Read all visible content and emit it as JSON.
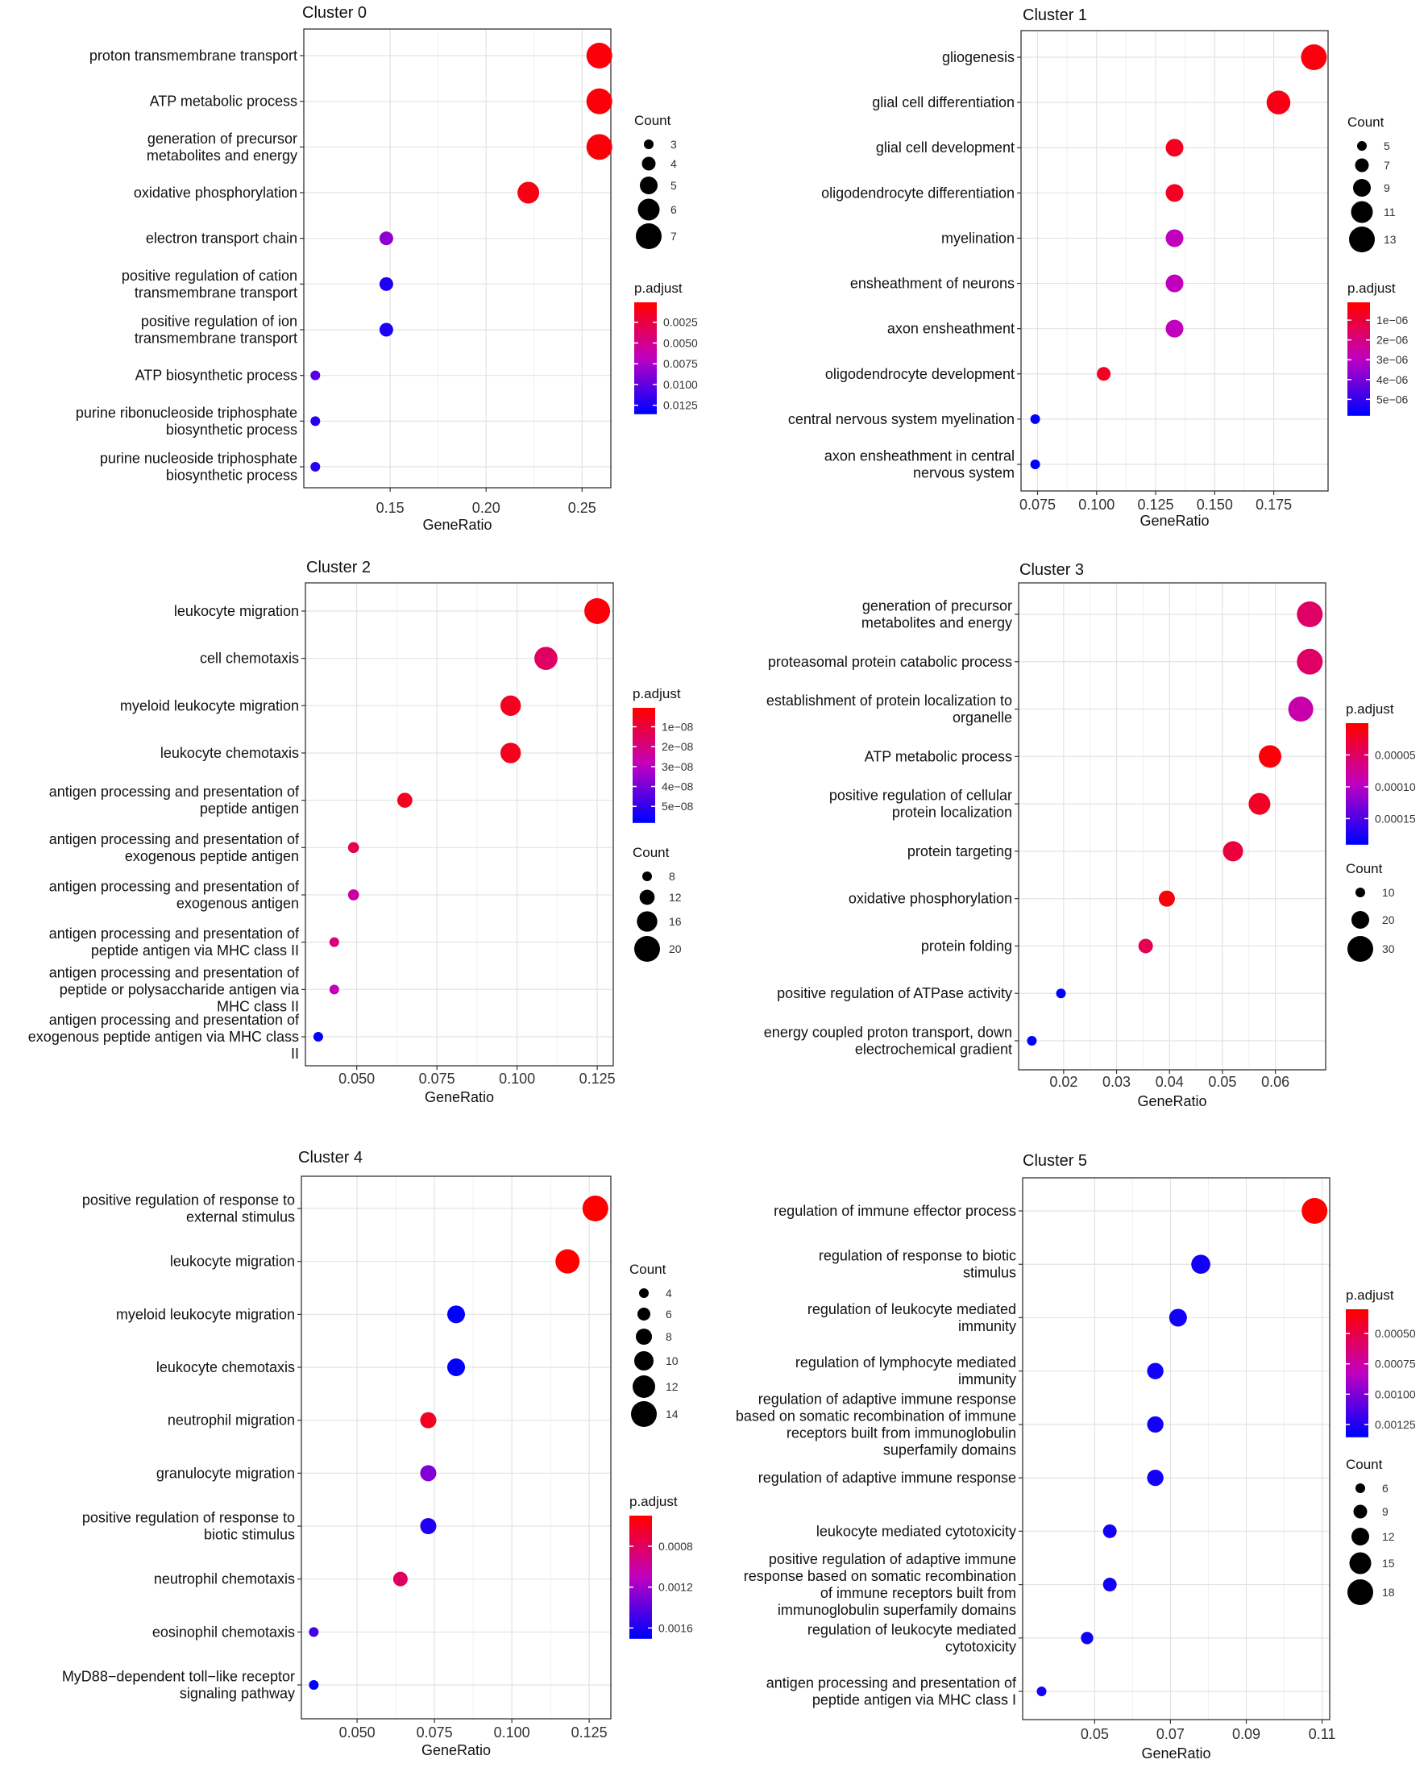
{
  "chart_data": [
    {
      "type": "scatter",
      "title": "Cluster 0",
      "xlabel": "GeneRatio",
      "xlim": [
        0.105,
        0.265
      ],
      "xticks": [
        0.15,
        0.2,
        0.25
      ],
      "xtick_labels": [
        "0.15",
        "0.20",
        "0.25"
      ],
      "categories": [
        [
          "proton transmembrane transport"
        ],
        [
          "ATP metabolic process"
        ],
        [
          "generation of precursor",
          "metabolites and energy"
        ],
        [
          "oxidative phosphorylation"
        ],
        [
          "electron transport chain"
        ],
        [
          "positive regulation of cation",
          "transmembrane transport"
        ],
        [
          "positive regulation of ion",
          "transmembrane transport"
        ],
        [
          "ATP biosynthetic process"
        ],
        [
          "purine ribonucleoside triphosphate",
          "biosynthetic process"
        ],
        [
          "purine nucleoside triphosphate",
          "biosynthetic process"
        ]
      ],
      "x": [
        0.259,
        0.259,
        0.259,
        0.222,
        0.148,
        0.148,
        0.148,
        0.111,
        0.111,
        0.111
      ],
      "count": [
        7,
        7,
        7,
        6,
        4,
        4,
        4,
        3,
        3,
        3
      ],
      "p_adjust": [
        0.0004,
        0.0004,
        0.0004,
        0.0008,
        0.0085,
        0.0125,
        0.0125,
        0.0105,
        0.0122,
        0.0122
      ],
      "count_legend": {
        "title": "Count",
        "values": [
          3,
          4,
          5,
          6,
          7
        ],
        "labels": [
          "3",
          "4",
          "5",
          "6",
          "7"
        ]
      },
      "color_legend": {
        "title": "p.adjust",
        "range": [
          0.0001,
          0.0135
        ],
        "ticks": [
          0.0025,
          0.005,
          0.0075,
          0.01,
          0.0125
        ],
        "labels": [
          "0.0025",
          "0.0050",
          "0.0075",
          "0.0100",
          "0.0125"
        ]
      }
    },
    {
      "type": "scatter",
      "title": "Cluster 1",
      "xlabel": "GeneRatio",
      "xlim": [
        0.068,
        0.198
      ],
      "xticks": [
        0.075,
        0.1,
        0.125,
        0.15,
        0.175
      ],
      "xtick_labels": [
        "0.075",
        "0.100",
        "0.125",
        "0.150",
        "0.175"
      ],
      "categories": [
        [
          "gliogenesis"
        ],
        [
          "glial cell differentiation"
        ],
        [
          "glial cell development"
        ],
        [
          "oligodendrocyte differentiation"
        ],
        [
          "myelination"
        ],
        [
          "ensheathment of neurons"
        ],
        [
          "axon ensheathment"
        ],
        [
          "oligodendrocyte development"
        ],
        [
          "central nervous system myelination"
        ],
        [
          "axon ensheathment in central",
          "nervous system"
        ]
      ],
      "x": [
        0.192,
        0.177,
        0.133,
        0.133,
        0.133,
        0.133,
        0.133,
        0.103,
        0.074,
        0.074
      ],
      "count": [
        13,
        12,
        9,
        9,
        9,
        9,
        9,
        7,
        5,
        5
      ],
      "p_adjust": [
        3e-07,
        4e-07,
        6e-07,
        6e-07,
        2.9e-06,
        2.9e-06,
        2.9e-06,
        6e-07,
        5.8e-06,
        5.8e-06
      ],
      "count_legend": {
        "title": "Count",
        "values": [
          5,
          7,
          9,
          11,
          13
        ],
        "labels": [
          "5",
          "7",
          "9",
          "11",
          "13"
        ]
      },
      "color_legend": {
        "title": "p.adjust",
        "range": [
          1e-07,
          5.8e-06
        ],
        "ticks": [
          1e-06,
          2e-06,
          3e-06,
          4e-06,
          5e-06
        ],
        "labels": [
          "1e−06",
          "2e−06",
          "3e−06",
          "4e−06",
          "5e−06"
        ]
      }
    },
    {
      "type": "scatter",
      "title": "Cluster 2",
      "xlabel": "GeneRatio",
      "xlim": [
        0.034,
        0.13
      ],
      "xticks": [
        0.05,
        0.075,
        0.1,
        0.125
      ],
      "xtick_labels": [
        "0.050",
        "0.075",
        "0.100",
        "0.125"
      ],
      "categories": [
        [
          "leukocyte migration"
        ],
        [
          "cell chemotaxis"
        ],
        [
          "myeloid leukocyte migration"
        ],
        [
          "leukocyte chemotaxis"
        ],
        [
          "antigen processing and presentation of",
          "peptide antigen"
        ],
        [
          "antigen processing and presentation of",
          "exogenous peptide antigen"
        ],
        [
          "antigen processing and presentation of",
          "exogenous antigen"
        ],
        [
          "antigen processing and presentation of",
          "peptide antigen via MHC class II"
        ],
        [
          "antigen processing and presentation of",
          "peptide or polysaccharide antigen via",
          "MHC class II"
        ],
        [
          "antigen processing and presentation of",
          "exogenous peptide antigen via MHC class",
          "II"
        ]
      ],
      "x": [
        0.125,
        0.109,
        0.098,
        0.098,
        0.065,
        0.049,
        0.049,
        0.043,
        0.043,
        0.038
      ],
      "count": [
        20,
        18,
        16,
        16,
        12,
        9,
        9,
        8,
        8,
        7
      ],
      "p_adjust": [
        2e-09,
        1.5e-08,
        5e-09,
        5e-09,
        5e-09,
        1.3e-08,
        2.5e-08,
        1.8e-08,
        2.8e-08,
        5.8e-08
      ],
      "count_legend": {
        "title": "Count",
        "values": [
          8,
          12,
          16,
          20
        ],
        "labels": [
          "8",
          "12",
          "16",
          "20"
        ]
      },
      "color_legend": {
        "title": "p.adjust",
        "range": [
          5e-10,
          5.8e-08
        ],
        "ticks": [
          1e-08,
          2e-08,
          3e-08,
          4e-08,
          5e-08
        ],
        "labels": [
          "1e−08",
          "2e−08",
          "3e−08",
          "4e−08",
          "5e−08"
        ]
      }
    },
    {
      "type": "scatter",
      "title": "Cluster 3",
      "xlabel": "GeneRatio",
      "xlim": [
        0.0115,
        0.0695
      ],
      "xticks": [
        0.02,
        0.03,
        0.04,
        0.05,
        0.06
      ],
      "xtick_labels": [
        "0.02",
        "0.03",
        "0.04",
        "0.05",
        "0.06"
      ],
      "categories": [
        [
          "generation of precursor",
          "metabolites and energy"
        ],
        [
          "proteasomal protein catabolic process"
        ],
        [
          "establishment of protein localization to",
          "organelle"
        ],
        [
          "ATP metabolic process"
        ],
        [
          "positive regulation of cellular",
          "protein localization"
        ],
        [
          "protein targeting"
        ],
        [
          "oxidative phosphorylation"
        ],
        [
          "protein folding"
        ],
        [
          "positive regulation of ATPase activity"
        ],
        [
          "energy coupled proton transport, down",
          "electrochemical gradient"
        ]
      ],
      "x": [
        0.0665,
        0.0665,
        0.0648,
        0.059,
        0.057,
        0.052,
        0.0395,
        0.0355,
        0.0195,
        0.014
      ],
      "count": [
        30,
        30,
        29,
        26,
        25,
        23,
        18,
        16,
        9,
        6
      ],
      "p_adjust": [
        5e-05,
        5e-05,
        8.5e-05,
        5e-06,
        1.8e-05,
        3e-05,
        5e-06,
        4e-05,
        0.00019,
        0.00019
      ],
      "count_legend": {
        "title": "Count",
        "values": [
          10,
          20,
          30
        ],
        "labels": [
          "10",
          "20",
          "30"
        ]
      },
      "color_legend": {
        "title": "p.adjust",
        "range": [
          1e-07,
          0.00019
        ],
        "ticks": [
          5e-05,
          0.0001,
          0.00015
        ],
        "labels": [
          "0.00005",
          "0.00010",
          "0.00015"
        ]
      }
    },
    {
      "type": "scatter",
      "title": "Cluster 4",
      "xlabel": "GeneRatio",
      "xlim": [
        0.032,
        0.132
      ],
      "xticks": [
        0.05,
        0.075,
        0.1,
        0.125
      ],
      "xtick_labels": [
        "0.050",
        "0.075",
        "0.100",
        "0.125"
      ],
      "categories": [
        [
          "positive regulation of response to",
          "external stimulus"
        ],
        [
          "leukocyte migration"
        ],
        [
          "myeloid leukocyte migration"
        ],
        [
          "leukocyte chemotaxis"
        ],
        [
          "neutrophil migration"
        ],
        [
          "granulocyte migration"
        ],
        [
          "positive regulation of response to",
          "biotic stimulus"
        ],
        [
          "neutrophil chemotaxis"
        ],
        [
          "eosinophil chemotaxis"
        ],
        [
          "MyD88−dependent toll−like receptor",
          "signaling pathway"
        ]
      ],
      "x": [
        0.127,
        0.118,
        0.082,
        0.082,
        0.073,
        0.073,
        0.073,
        0.064,
        0.036,
        0.036
      ],
      "count": [
        14,
        13,
        9,
        9,
        8,
        8,
        8,
        7,
        4,
        4
      ],
      "p_adjust": [
        0.0005,
        0.0005,
        0.0017,
        0.0017,
        0.0006,
        0.0013,
        0.0016,
        0.0008,
        0.0015,
        0.0017
      ],
      "count_legend": {
        "title": "Count",
        "values": [
          4,
          6,
          8,
          10,
          12,
          14
        ],
        "labels": [
          "4",
          "6",
          "8",
          "10",
          "12",
          "14"
        ]
      },
      "color_legend": {
        "title": "p.adjust",
        "range": [
          0.0005,
          0.0017
        ],
        "ticks": [
          0.0008,
          0.0012,
          0.0016
        ],
        "labels": [
          "0.0008",
          "0.0012",
          "0.0016"
        ]
      }
    },
    {
      "type": "scatter",
      "title": "Cluster 5",
      "xlabel": "GeneRatio",
      "xlim": [
        0.031,
        0.112
      ],
      "xticks": [
        0.05,
        0.07,
        0.09,
        0.11
      ],
      "xtick_labels": [
        "0.05",
        "0.07",
        "0.09",
        "0.11"
      ],
      "categories": [
        [
          "regulation of immune effector process"
        ],
        [
          "regulation of response to biotic",
          "stimulus"
        ],
        [
          "regulation of leukocyte mediated",
          "immunity"
        ],
        [
          "regulation of lymphocyte mediated",
          "immunity"
        ],
        [
          "regulation of adaptive immune response",
          "based on somatic recombination of immune",
          "receptors built from immunoglobulin",
          "superfamily domains"
        ],
        [
          "regulation of adaptive immune response"
        ],
        [
          "leukocyte mediated cytotoxicity"
        ],
        [
          "positive regulation of adaptive immune",
          "response based on somatic recombination",
          "of immune receptors built from",
          "immunoglobulin superfamily domains"
        ],
        [
          "regulation of leukocyte mediated",
          "cytotoxicity"
        ],
        [
          "antigen processing and presentation of",
          "peptide antigen via MHC class I"
        ]
      ],
      "x": [
        0.108,
        0.078,
        0.072,
        0.066,
        0.066,
        0.066,
        0.054,
        0.054,
        0.048,
        0.036
      ],
      "count": [
        18,
        13,
        12,
        11,
        11,
        11,
        9,
        9,
        8,
        6
      ],
      "p_adjust": [
        0.0003,
        0.0013,
        0.0013,
        0.0013,
        0.0013,
        0.0013,
        0.0013,
        0.0013,
        0.0013,
        0.0013
      ],
      "count_legend": {
        "title": "Count",
        "values": [
          6,
          9,
          12,
          15,
          18
        ],
        "labels": [
          "6",
          "9",
          "12",
          "15",
          "18"
        ]
      },
      "color_legend": {
        "title": "p.adjust",
        "range": [
          0.0003,
          0.00135
        ],
        "ticks": [
          0.0005,
          0.00075,
          0.001,
          0.00125
        ],
        "labels": [
          "0.00050",
          "0.00075",
          "0.00100",
          "0.00125"
        ]
      }
    }
  ]
}
